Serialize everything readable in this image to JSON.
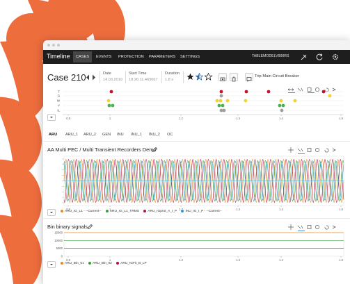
{
  "app": {
    "brand": "Timeline"
  },
  "nav": {
    "tabs": [
      {
        "label": "CASES",
        "active": true
      },
      {
        "label": "EVENTS",
        "active": false
      },
      {
        "label": "PROTECTION",
        "active": false
      },
      {
        "label": "PARAMETERS",
        "active": false
      },
      {
        "label": "SETTINGS",
        "active": false
      }
    ],
    "model": "TABLEMODELV900RS",
    "icons": [
      "plug-icon",
      "refresh-icon",
      "settings-icon"
    ]
  },
  "case": {
    "title": "Case 210",
    "date_label": "Date",
    "date_value": "14.03.2019",
    "start_label": "Start Time",
    "start_value": "18:26:11.469667",
    "duration_label": "Duration",
    "duration_value": "1.8 s",
    "rating": 1.5,
    "rating_max": 3,
    "trip_label": "Trip Main Circuit Breaker"
  },
  "overview": {
    "row_labels": [
      "T",
      "G",
      "W",
      "Y",
      "IL"
    ],
    "ticks": [
      "0.8",
      "1",
      "1.2",
      "1.3",
      "1.4",
      "1.6"
    ],
    "colors": {
      "red": "#c8102e",
      "yellow": "#f2d230",
      "green": "#4caf50",
      "gray": "#9e9e9e"
    }
  },
  "subtabs": [
    "ARU",
    "ARU_1",
    "ARU_2",
    "GEN",
    "INU",
    "INU_1",
    "INU_2",
    "OC"
  ],
  "chart1": {
    "title": "AA Multi PEC / Multi Transient Recorders Demo",
    "y_ticks": [
      "",
      "",
      "",
      "",
      "",
      "",
      "",
      "",
      ""
    ],
    "x_ticks": [
      "0.8",
      "1",
      "1.2",
      "1.3",
      "1.4",
      "1.6"
    ],
    "legend": [
      {
        "name": "ARU_IG_L1 - --Current--",
        "color": "#f08a24"
      },
      {
        "name": "ARU_IG_L1_TRMS",
        "color": "#3aa13a"
      },
      {
        "name": "ARU_IGprot_A_I_P",
        "color": "#b5143c"
      },
      {
        "name": "INU_IG_I_P - --Current--",
        "color": "#2b95d6"
      }
    ]
  },
  "chart2": {
    "title": "Bin binary signals",
    "y_ticks": [
      "15000",
      "10000",
      "5000",
      "0"
    ],
    "x_ticks": [
      "0.8",
      "1",
      "1.2",
      "1.3",
      "1.4",
      "1.6"
    ],
    "legend": [
      {
        "name": "ARU_Bin_01",
        "color": "#f08a24"
      },
      {
        "name": "ARU_Bin_02",
        "color": "#3aa13a"
      },
      {
        "name": "ARU_IGFit_B_LP",
        "color": "#b5143c"
      }
    ]
  },
  "chart_data": [
    {
      "type": "line",
      "title": "AA Multi PEC / Multi Transient Recorders Demo",
      "x_range": [
        0.8,
        1.6
      ],
      "series": [
        {
          "name": "ARU_IG_L1 - --Current--",
          "shape": "sine",
          "cycles": 36
        },
        {
          "name": "ARU_IG_L1_TRMS",
          "shape": "sine",
          "cycles": 36
        },
        {
          "name": "ARU_IGprot_A_I_P",
          "shape": "sine",
          "cycles": 36
        },
        {
          "name": "INU_IG_I_P - --Current--",
          "shape": "sine",
          "cycles": 36
        }
      ]
    },
    {
      "type": "line",
      "title": "Bin binary signals",
      "x_range": [
        0.8,
        1.6
      ],
      "ylim": [
        0,
        15000
      ],
      "series": [
        {
          "name": "ARU_Bin_01",
          "values": [
            15000,
            15000
          ]
        },
        {
          "name": "ARU_Bin_02",
          "values": [
            10000,
            10000
          ]
        },
        {
          "name": "ARU_IGFit_B_LP",
          "values": [
            5000,
            5000
          ]
        }
      ]
    }
  ]
}
